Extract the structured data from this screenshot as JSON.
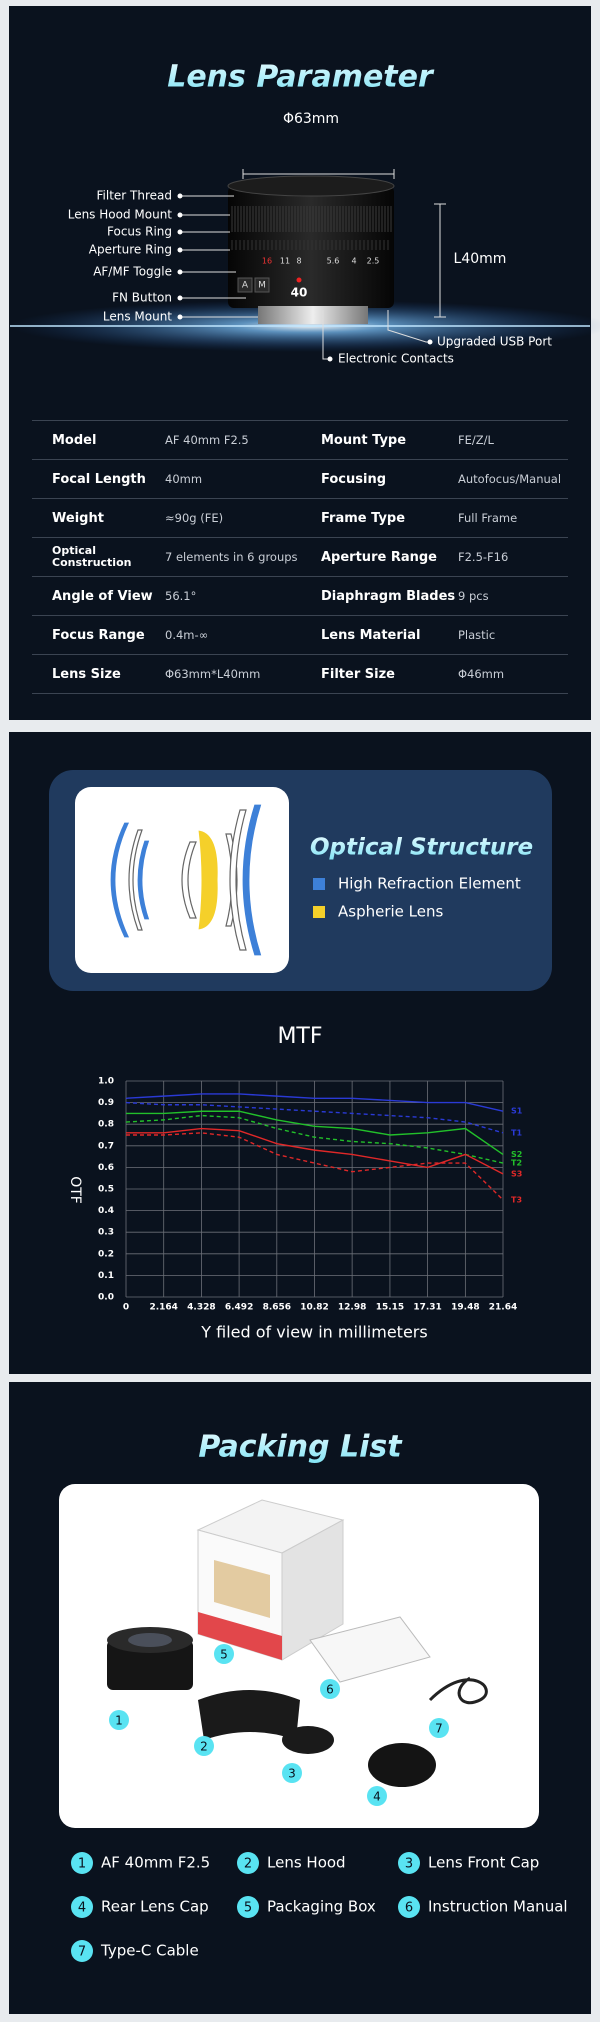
{
  "lens_parameter": {
    "title": "Lens Parameter",
    "diameter": "Φ63mm",
    "length": "L40mm",
    "callouts_left": [
      "Filter Thread",
      "Lens Hood Mount",
      "Focus Ring",
      "Aperture Ring",
      "AF/MF Toggle",
      "FN Button",
      "Lens Mount"
    ],
    "callouts_right": [
      "Upgraded USB Port",
      "Electronic Contacts"
    ],
    "aperture_marks": [
      "16",
      "11",
      "8",
      "5.6",
      "4",
      "2.5"
    ],
    "focal_mark": "40",
    "mode_marks": [
      "A",
      "M"
    ]
  },
  "spec_table": {
    "rows": [
      [
        "Model",
        "AF 40mm F2.5",
        "Mount Type",
        "FE/Z/L"
      ],
      [
        "Focal Length",
        "40mm",
        "Focusing",
        "Autofocus/Manual"
      ],
      [
        "Weight",
        "≈90g (FE)",
        "Frame Type",
        "Full Frame"
      ],
      [
        "Optical Construction",
        "7 elements in 6 groups",
        "Aperture Range",
        "F2.5-F16"
      ],
      [
        "Angle of View",
        "56.1°",
        "Diaphragm Blades",
        "9 pcs"
      ],
      [
        "Focus Range",
        "0.4m-∞",
        "Lens Material",
        "Plastic"
      ],
      [
        "Lens Size",
        "Φ63mm*L40mm",
        "Filter Size",
        "Φ46mm"
      ]
    ]
  },
  "optical_structure": {
    "title": "Optical Structure",
    "legend": [
      {
        "label": "High Refraction Element",
        "color": "#3d80d8"
      },
      {
        "label": "Aspherie Lens",
        "color": "#f5d02a"
      }
    ]
  },
  "chart_data": {
    "type": "line",
    "title": "MTF",
    "x_label": "Y filed of view in millimeters",
    "y_label": "OTF",
    "x": [
      0,
      2.164,
      4.328,
      6.492,
      8.656,
      10.82,
      12.98,
      15.15,
      17.31,
      19.48,
      21.64
    ],
    "xlim": [
      0,
      21.64
    ],
    "xticks": [
      0,
      2.164,
      4.328,
      6.492,
      8.656,
      10.82,
      12.98,
      15.15,
      17.31,
      19.48,
      21.64
    ],
    "ylim": [
      0,
      1
    ],
    "yticks": [
      {
        "value": 0,
        "label": "0.0"
      },
      0.1,
      0.2,
      0.3,
      0.4,
      0.5,
      0.6,
      0.7,
      0.8,
      0.9,
      {
        "value": 1,
        "label": "1.0"
      }
    ],
    "grid": true,
    "series": [
      {
        "name": "S1",
        "color": "#2a3ad6",
        "dashed": false,
        "values": [
          0.92,
          0.93,
          0.94,
          0.94,
          0.93,
          0.92,
          0.92,
          0.91,
          0.9,
          0.9,
          0.86
        ]
      },
      {
        "name": "T1",
        "color": "#2a3ad6",
        "dashed": true,
        "values": [
          0.9,
          0.89,
          0.89,
          0.88,
          0.87,
          0.86,
          0.85,
          0.84,
          0.83,
          0.81,
          0.76
        ]
      },
      {
        "name": "S2",
        "color": "#22c02a",
        "dashed": false,
        "values": [
          0.85,
          0.85,
          0.86,
          0.86,
          0.82,
          0.79,
          0.78,
          0.75,
          0.76,
          0.78,
          0.66
        ]
      },
      {
        "name": "T2",
        "color": "#22c02a",
        "dashed": true,
        "values": [
          0.81,
          0.82,
          0.84,
          0.83,
          0.78,
          0.74,
          0.72,
          0.71,
          0.69,
          0.66,
          0.62
        ]
      },
      {
        "name": "S3",
        "color": "#e02828",
        "dashed": false,
        "values": [
          0.76,
          0.76,
          0.78,
          0.77,
          0.71,
          0.68,
          0.66,
          0.63,
          0.6,
          0.66,
          0.57
        ]
      },
      {
        "name": "T3",
        "color": "#e02828",
        "dashed": true,
        "values": [
          0.75,
          0.75,
          0.76,
          0.74,
          0.66,
          0.62,
          0.58,
          0.6,
          0.62,
          0.62,
          0.45
        ]
      }
    ]
  },
  "packing_list": {
    "title": "Packing List",
    "items": [
      {
        "number": "1",
        "label": "AF 40mm F2.5"
      },
      {
        "number": "2",
        "label": "Lens Hood"
      },
      {
        "number": "3",
        "label": "Lens Front Cap"
      },
      {
        "number": "4",
        "label": "Rear Lens Cap"
      },
      {
        "number": "5",
        "label": "Packaging Box"
      },
      {
        "number": "6",
        "label": "Instruction Manual"
      },
      {
        "number": "7",
        "label": "Type-C Cable"
      }
    ]
  }
}
